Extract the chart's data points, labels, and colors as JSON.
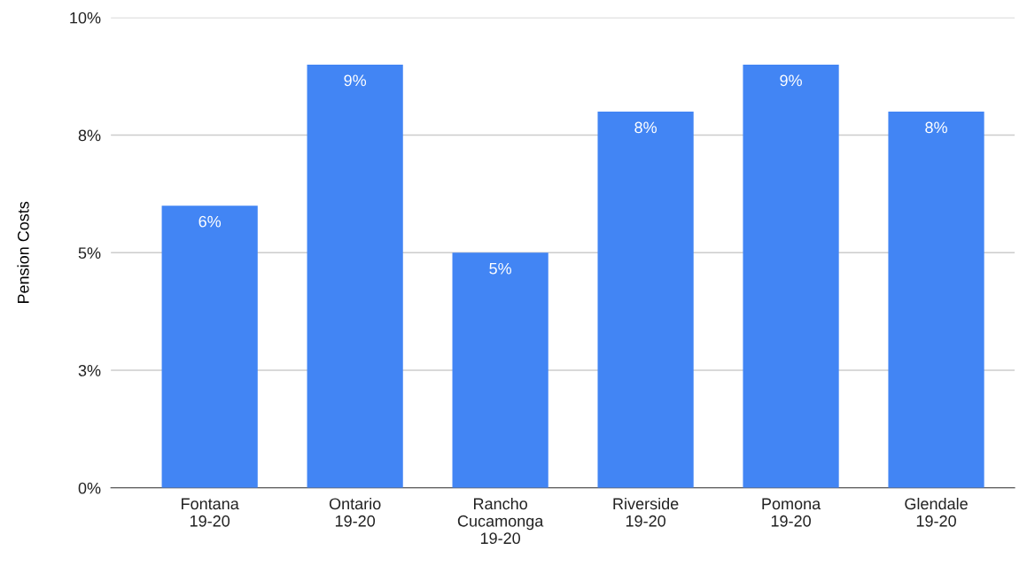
{
  "chart_data": {
    "type": "bar",
    "ylabel": "Pension Costs",
    "categories": [
      "Fontana\n19-20",
      "Ontario\n19-20",
      "Rancho\nCucamonga\n19-20",
      "Riverside\n19-20",
      "Pomona\n19-20",
      "Glendale\n19-20"
    ],
    "values": [
      6.0,
      9.0,
      5.0,
      8.0,
      9.0,
      8.0
    ],
    "value_labels": [
      "6%",
      "9%",
      "5%",
      "8%",
      "9%",
      "8%"
    ],
    "color": "#4285f4",
    "ylim": [
      0,
      10
    ],
    "yticks": [
      {
        "value": 0,
        "label": "0%"
      },
      {
        "value": 2.5,
        "label": "3%"
      },
      {
        "value": 5,
        "label": "5%"
      },
      {
        "value": 7.5,
        "label": "8%"
      },
      {
        "value": 10,
        "label": "10%"
      }
    ],
    "grid": "y",
    "legend": false
  }
}
